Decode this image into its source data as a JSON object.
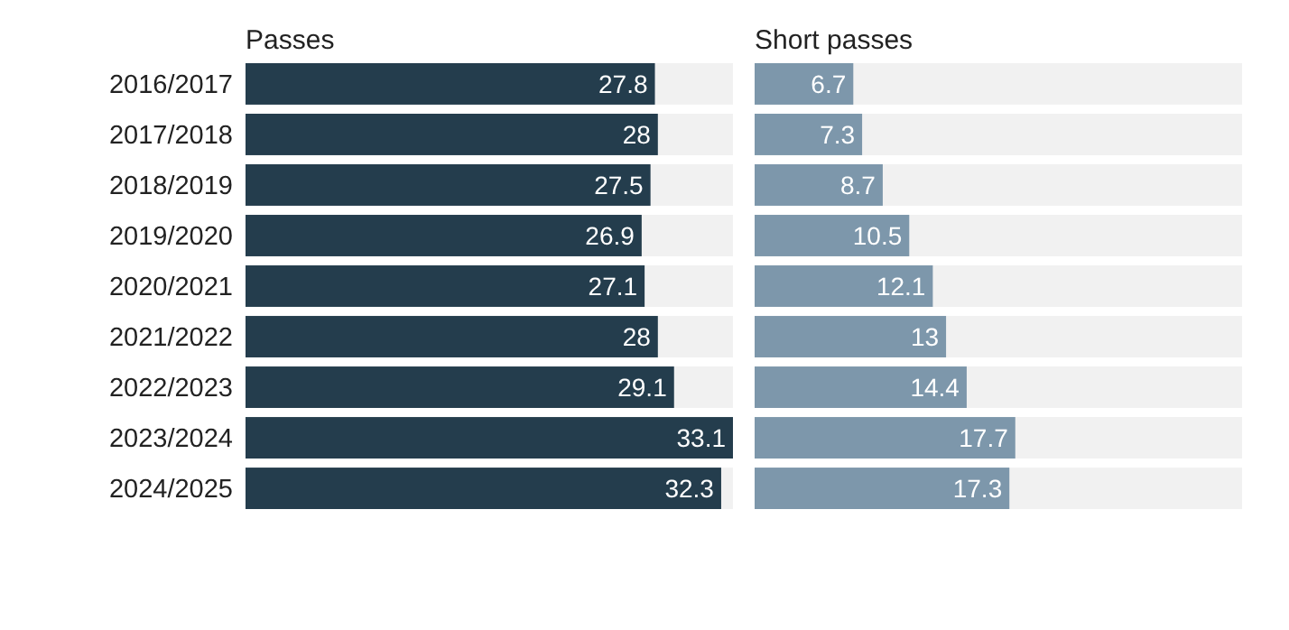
{
  "chart_data": [
    {
      "type": "bar",
      "orientation": "horizontal",
      "title": "Passes",
      "categories": [
        "2016/2017",
        "2017/2018",
        "2018/2019",
        "2019/2020",
        "2020/2021",
        "2021/2022",
        "2022/2023",
        "2023/2024",
        "2024/2025"
      ],
      "values": [
        27.8,
        28,
        27.5,
        26.9,
        27.1,
        28,
        29.1,
        33.1,
        32.3
      ],
      "color": "#243d4d",
      "data_labels": true,
      "tick_labels": "y"
    },
    {
      "type": "bar",
      "orientation": "horizontal",
      "title": "Short passes",
      "categories": [
        "2016/2017",
        "2017/2018",
        "2018/2019",
        "2019/2020",
        "2020/2021",
        "2021/2022",
        "2022/2023",
        "2023/2024",
        "2024/2025"
      ],
      "values": [
        6.7,
        7.3,
        8.7,
        10.5,
        12.1,
        13,
        14.4,
        17.7,
        17.3
      ],
      "color": "#7d97ab",
      "data_labels": true,
      "tick_labels": false
    }
  ]
}
